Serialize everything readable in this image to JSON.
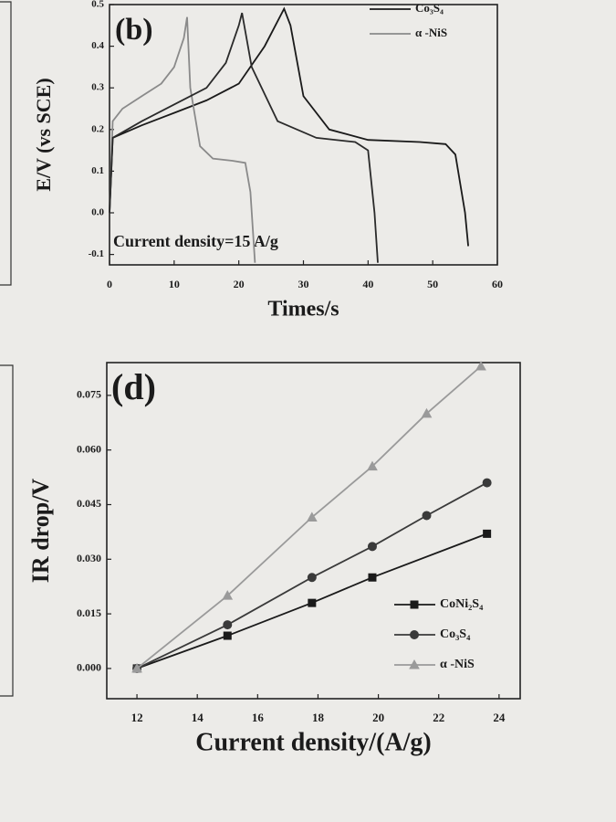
{
  "chart_data": [
    {
      "type": "line",
      "annotation": "(b)",
      "note": "Current density=15 A/g",
      "xlabel": "Times/s",
      "ylabel": "E/V (vs SCE)",
      "xlim": [
        0,
        60
      ],
      "xticks": [
        0,
        10,
        20,
        30,
        40,
        50,
        60
      ],
      "ylim": [
        -0.125,
        0.5
      ],
      "yticks": [
        -0.1,
        {
          "value": 0,
          "label": "0.0"
        },
        0.1,
        0.2,
        0.3,
        0.4,
        0.5
      ],
      "legend": "upper right",
      "series": [
        {
          "name": "Co₃S₄",
          "color": "#1a1a1a",
          "x": [
            0,
            0.5,
            5,
            10,
            15,
            20,
            24,
            27,
            28,
            30,
            34,
            40,
            48,
            52,
            53.5,
            55,
            55.5
          ],
          "values": [
            0,
            0.18,
            0.21,
            0.24,
            0.27,
            0.31,
            0.4,
            0.49,
            0.45,
            0.28,
            0.2,
            0.175,
            0.17,
            0.165,
            0.14,
            0,
            -0.08
          ]
        },
        {
          "name": "α -NiS",
          "color": "#8a8a8a",
          "x": [
            0,
            0.5,
            2,
            5,
            8,
            10,
            11.5,
            12,
            12.5,
            14,
            16,
            19,
            21,
            21.8,
            22.5
          ],
          "values": [
            0,
            0.22,
            0.25,
            0.28,
            0.31,
            0.35,
            0.42,
            0.47,
            0.3,
            0.16,
            0.13,
            0.125,
            0.12,
            0.05,
            -0.12
          ]
        },
        {
          "color": "#2a2a2a",
          "x": [
            0,
            0.5,
            5,
            10,
            15,
            18,
            20,
            20.5,
            22,
            26,
            32,
            38,
            40,
            41,
            41.5
          ],
          "values": [
            0,
            0.18,
            0.22,
            0.26,
            0.3,
            0.36,
            0.45,
            0.48,
            0.35,
            0.22,
            0.18,
            0.17,
            0.15,
            0,
            -0.12
          ]
        }
      ]
    },
    {
      "type": "line",
      "annotation": "(d)",
      "xlabel": "Current density/(A/g)",
      "ylabel": "IR drop/V",
      "xlim": [
        11,
        24.7
      ],
      "xticks": [
        12,
        14,
        16,
        18,
        20,
        22,
        24
      ],
      "ylim": [
        -0.0083,
        0.084
      ],
      "yticks": [
        {
          "value": 0,
          "label": "0.000"
        },
        0.015,
        {
          "value": 0.03,
          "label": "0.030"
        },
        0.045,
        {
          "value": 0.06,
          "label": "0.060"
        },
        0.075
      ],
      "legend": "lower right",
      "series": [
        {
          "name": "CoNi₂S₄",
          "color": "#1a1a1a",
          "marker": "square",
          "x": [
            12,
            15,
            17.8,
            19.8,
            23.6
          ],
          "values": [
            0,
            0.009,
            0.018,
            0.025,
            0.037
          ]
        },
        {
          "name": "Co₃S₄",
          "color": "#3a3a3a",
          "marker": "circle",
          "x": [
            12,
            15,
            17.8,
            19.8,
            21.6,
            23.6
          ],
          "values": [
            0,
            0.012,
            0.025,
            0.0335,
            0.042,
            0.051
          ]
        },
        {
          "name": "α -NiS",
          "color": "#9a9a9a",
          "marker": "triangle",
          "x": [
            12,
            15,
            17.8,
            19.8,
            21.6,
            23.4
          ],
          "values": [
            0,
            0.02,
            0.0415,
            0.0555,
            0.07,
            0.083
          ]
        }
      ]
    }
  ]
}
